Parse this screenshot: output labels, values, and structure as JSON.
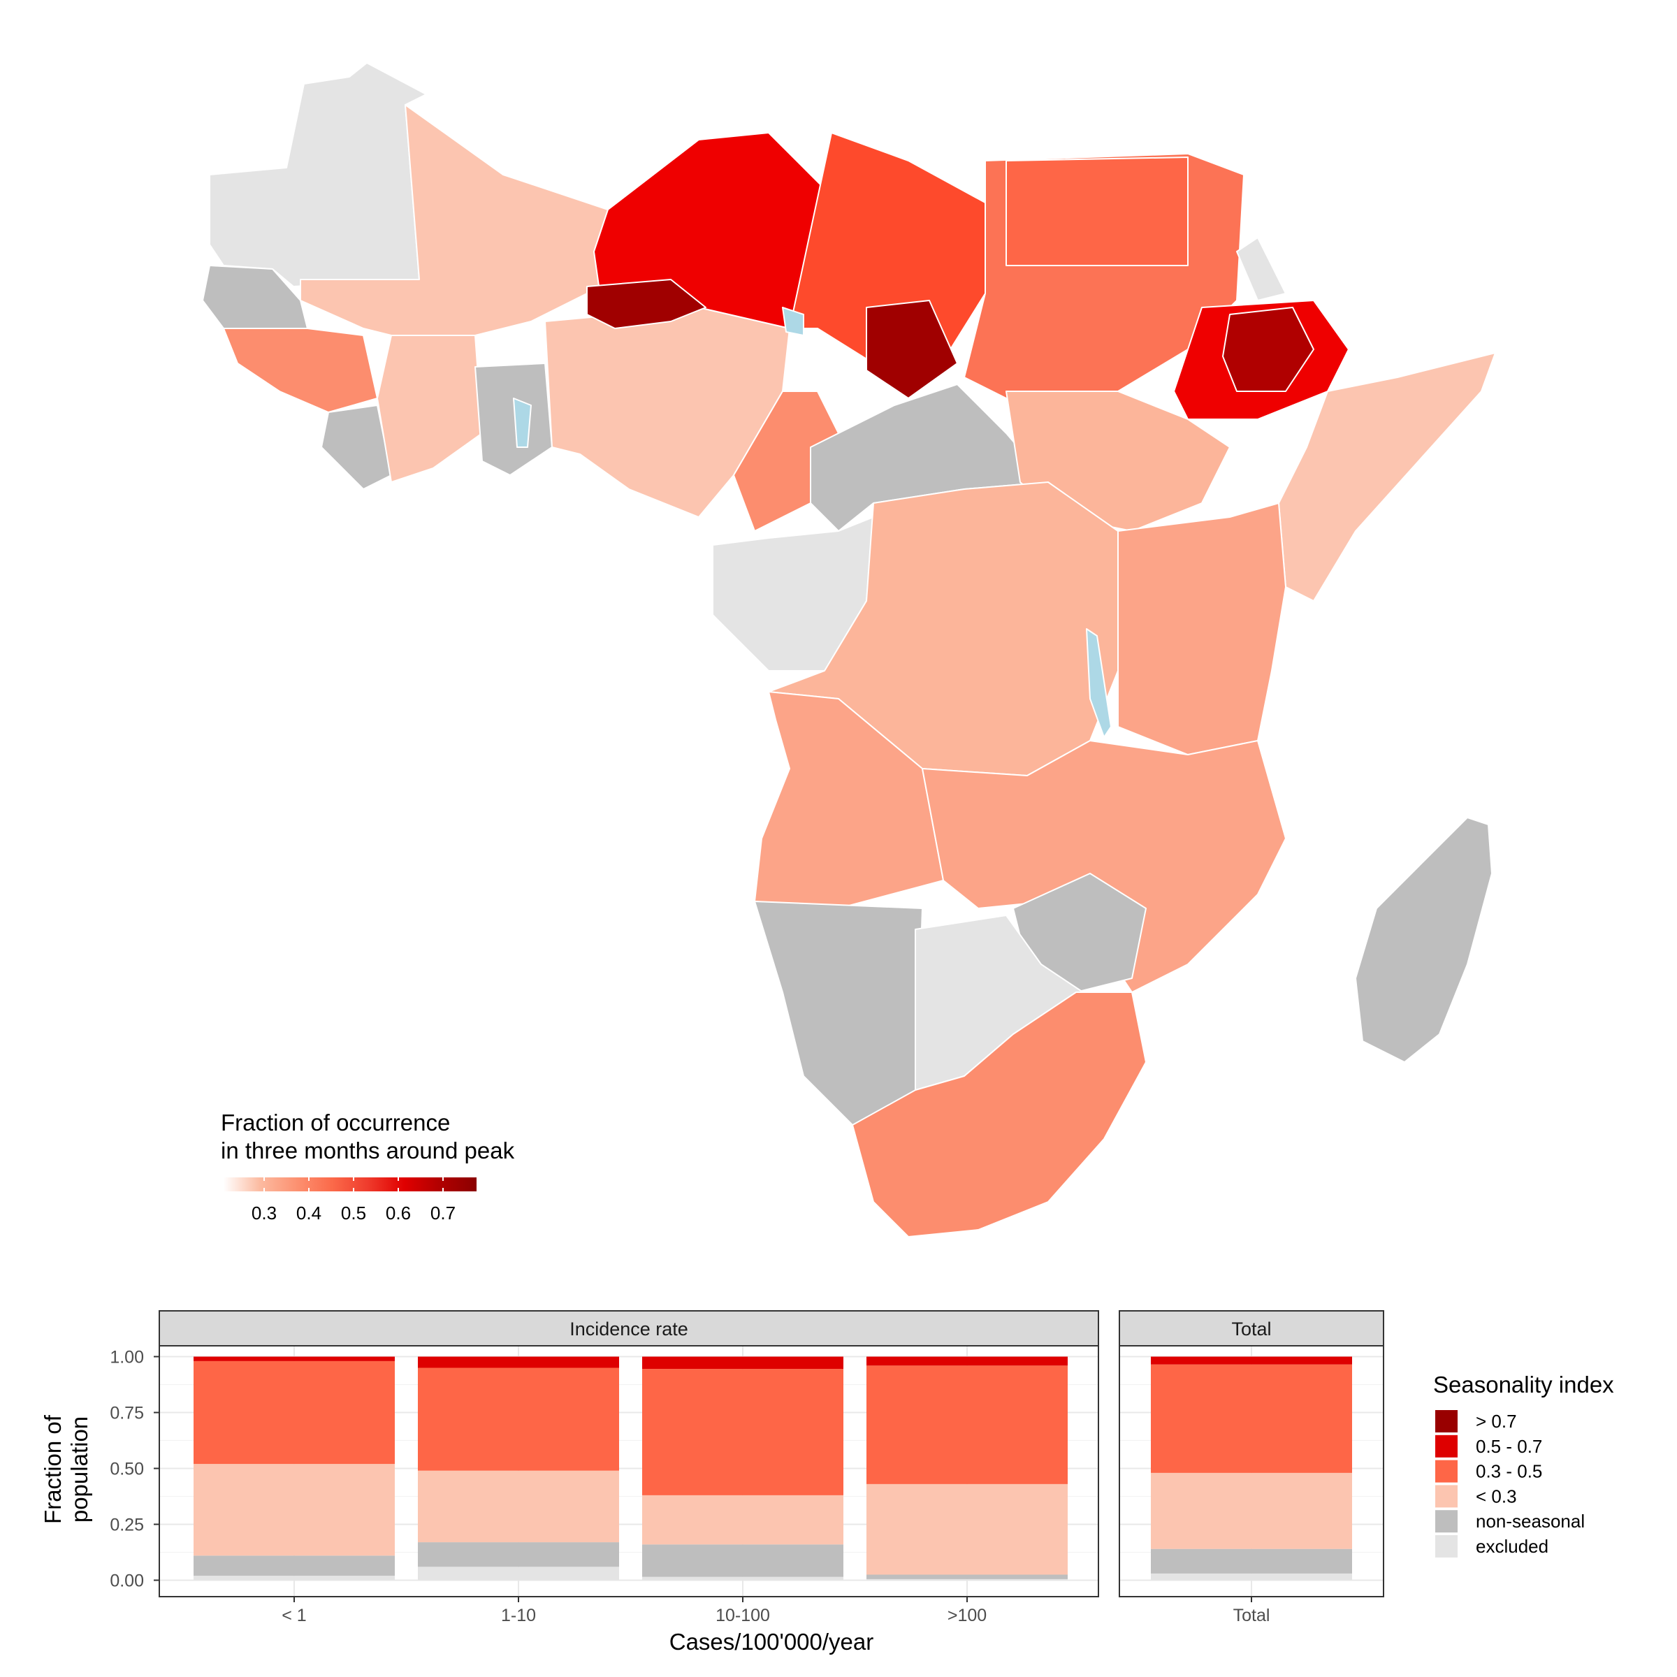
{
  "map": {
    "legend_title_line1": "Fraction of occurrence",
    "legend_title_line2": "in three months around peak",
    "colorbar_ticks": [
      "0.3",
      "0.4",
      "0.5",
      "0.6",
      "0.7"
    ],
    "colorbar_colors": [
      "#ffffff",
      "#fcbba1",
      "#fc9272",
      "#fb6a4a",
      "#ef3b2c",
      "#e00000",
      "#b00000",
      "#8b0000"
    ],
    "colors": {
      "excluded": "#e4e4e4",
      "non_seasonal": "#bebebe",
      "water": "#add8e6",
      "lt03": "#fcc5b0",
      "r03_05": "#fc8d6e",
      "r05_07": "#ef0000",
      "gt07": "#a00000"
    }
  },
  "chart_data": {
    "type": "bar",
    "stacked": true,
    "ylabel_line1": "Fraction of",
    "ylabel_line2": "population",
    "xlabel": "Cases/100'000/year",
    "ylim": [
      0,
      1
    ],
    "y_ticks": [
      "0.00",
      "0.25",
      "0.50",
      "0.75",
      "1.00"
    ],
    "grid": true,
    "legend_position": "right",
    "legend_title": "Seasonality index",
    "series": [
      {
        "name": "excluded",
        "color": "#e4e4e4"
      },
      {
        "name": "non-seasonal",
        "color": "#bebebe"
      },
      {
        "name": "< 0.3",
        "color": "#fcc5b0"
      },
      {
        "name": "0.3 - 0.5",
        "color": "#fe6647"
      },
      {
        "name": "0.5 - 0.7",
        "color": "#de0000"
      },
      {
        "name": "> 0.7",
        "color": "#990000"
      }
    ],
    "legend_order": [
      "> 0.7",
      "0.5 - 0.7",
      "0.3 - 0.5",
      "< 0.3",
      "non-seasonal",
      "excluded"
    ],
    "panels": [
      {
        "strip": "Incidence rate",
        "categories": [
          "< 1",
          "1-10",
          "10-100",
          ">100"
        ],
        "values": [
          [
            0.02,
            0.09,
            0.41,
            0.46,
            0.02,
            0.0
          ],
          [
            0.06,
            0.11,
            0.32,
            0.46,
            0.05,
            0.0
          ],
          [
            0.015,
            0.145,
            0.22,
            0.565,
            0.055,
            0.0
          ],
          [
            0.005,
            0.02,
            0.405,
            0.53,
            0.04,
            0.0
          ]
        ]
      },
      {
        "strip": "Total",
        "categories": [
          "Total"
        ],
        "values": [
          [
            0.03,
            0.11,
            0.34,
            0.485,
            0.035,
            0.0
          ]
        ]
      }
    ]
  }
}
